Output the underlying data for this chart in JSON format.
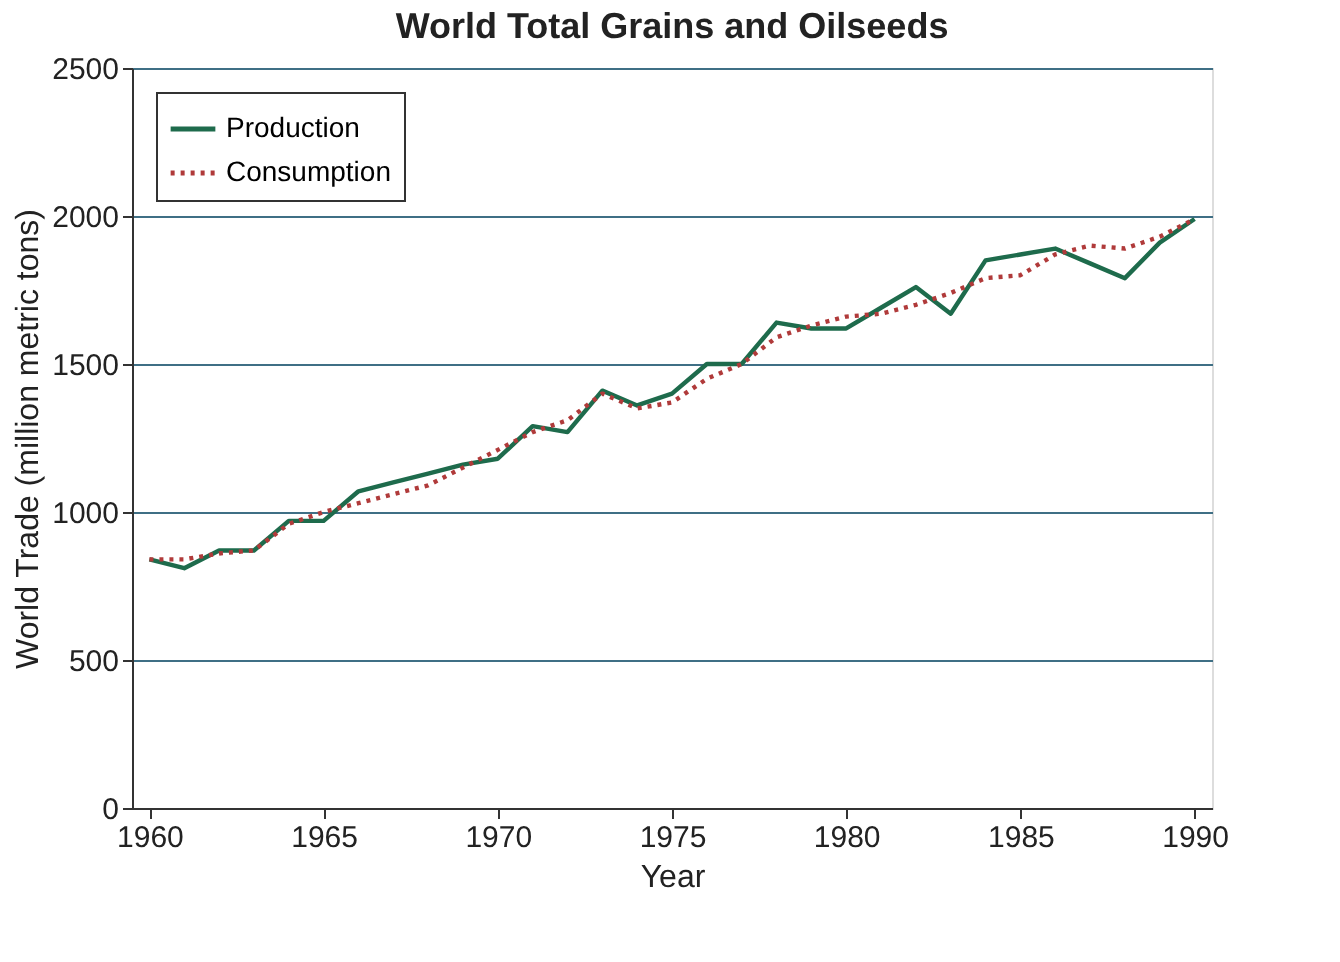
{
  "chart_data": {
    "type": "line",
    "title": "World Total Grains and Oilseeds",
    "xlabel": "Year",
    "ylabel": "World Trade (million metric tons)",
    "x": [
      1960,
      1961,
      1962,
      1963,
      1964,
      1965,
      1966,
      1967,
      1968,
      1969,
      1970,
      1971,
      1972,
      1973,
      1974,
      1975,
      1976,
      1977,
      1978,
      1979,
      1980,
      1981,
      1982,
      1983,
      1984,
      1985,
      1986,
      1987,
      1988,
      1989,
      1990
    ],
    "series": [
      {
        "name": "Production",
        "color": "#1e6b4c",
        "line_style": "solid",
        "values": [
          840,
          810,
          870,
          870,
          970,
          970,
          1070,
          1100,
          1130,
          1160,
          1180,
          1290,
          1270,
          1410,
          1360,
          1400,
          1500,
          1500,
          1640,
          1620,
          1620,
          1690,
          1760,
          1670,
          1850,
          1870,
          1890,
          1840,
          1790,
          1910,
          1990
        ]
      },
      {
        "name": "Consumption",
        "color": "#b03a3a",
        "line_style": "dotted",
        "values": [
          840,
          840,
          860,
          870,
          960,
          1000,
          1030,
          1060,
          1090,
          1150,
          1210,
          1270,
          1310,
          1400,
          1350,
          1370,
          1450,
          1500,
          1590,
          1630,
          1660,
          1670,
          1700,
          1740,
          1790,
          1800,
          1870,
          1900,
          1890,
          1930,
          1990
        ]
      }
    ],
    "xlim": [
      1959.5,
      1990.5
    ],
    "xticks": [
      1960,
      1965,
      1970,
      1975,
      1980,
      1985,
      1990
    ],
    "ylim": [
      0,
      2500
    ],
    "yticks": [
      0,
      500,
      1000,
      1500,
      2000,
      2500
    ],
    "grid": "y",
    "legend": "top left",
    "marker": "none"
  }
}
